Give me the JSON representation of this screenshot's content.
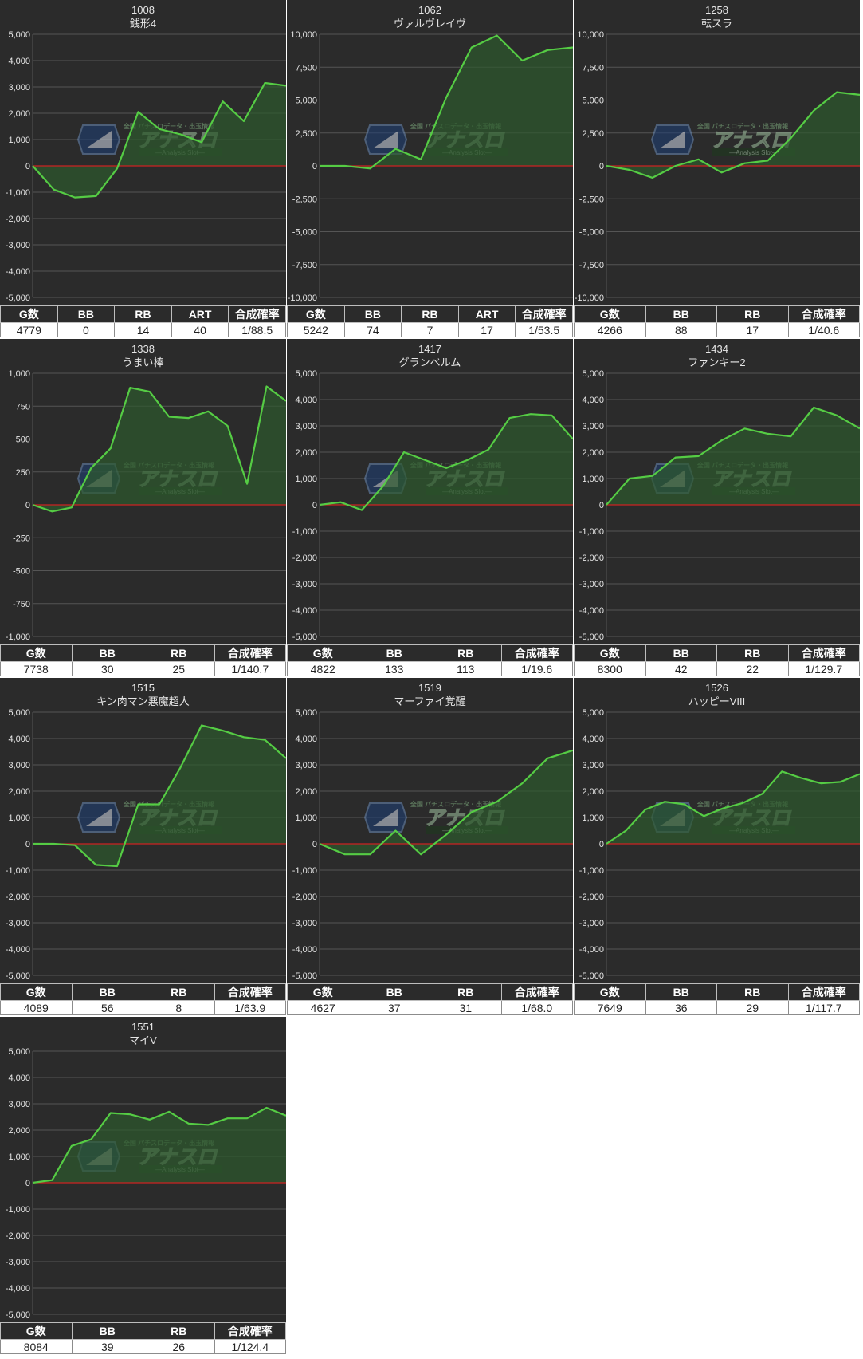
{
  "colors": {
    "panel_bg": "#2b2b2b",
    "grid": "#555555",
    "zero_line": "#cc2222",
    "line": "#55cc44",
    "fill": "#2d5a2d",
    "label": "#e6e6e6",
    "title": "#e6e6e6"
  },
  "watermark": {
    "brand": "アナスロ",
    "tagline": "全国 パチスロデータ・出玉情報",
    "sub": "―Analysis Slot―",
    "logo_icon": "hexagon-logo-icon"
  },
  "panels": [
    {
      "machine_no": "1008",
      "machine_name": "銭形4",
      "stats_headers": [
        "G数",
        "BB",
        "RB",
        "ART",
        "合成確率"
      ],
      "stats_values": [
        "4779",
        "0",
        "14",
        "40",
        "1/88.5"
      ],
      "chart_data": {
        "type": "area",
        "ylim": [
          -5000,
          5000
        ],
        "yticks": [
          5000,
          4000,
          3000,
          2000,
          1000,
          0,
          -1000,
          -2000,
          -3000,
          -4000,
          -5000
        ],
        "ytick_labels": [
          "5,000",
          "4,000",
          "3,000",
          "2,000",
          "1,000",
          "0",
          "-1,000",
          "-2,000",
          "-3,000",
          "-4,000",
          "-5,000"
        ],
        "values": [
          0,
          -900,
          -1200,
          -1150,
          -100,
          2050,
          1400,
          1200,
          900,
          2450,
          1700,
          3150,
          3050
        ]
      }
    },
    {
      "machine_no": "1062",
      "machine_name": "ヴァルヴレイヴ",
      "stats_headers": [
        "G数",
        "BB",
        "RB",
        "ART",
        "合成確率"
      ],
      "stats_values": [
        "5242",
        "74",
        "7",
        "17",
        "1/53.5"
      ],
      "chart_data": {
        "type": "area",
        "ylim": [
          -10000,
          10000
        ],
        "yticks": [
          10000,
          7500,
          5000,
          2500,
          0,
          -2500,
          -5000,
          -7500,
          -10000
        ],
        "ytick_labels": [
          "10,000",
          "7,500",
          "5,000",
          "2,500",
          "0",
          "-2,500",
          "-5,000",
          "-7,500",
          "-10,000"
        ],
        "values": [
          0,
          0,
          -200,
          1300,
          500,
          5200,
          9000,
          9900,
          8000,
          8800,
          9000
        ]
      }
    },
    {
      "machine_no": "1258",
      "machine_name": "転スラ",
      "stats_headers": [
        "G数",
        "BB",
        "RB",
        "合成確率"
      ],
      "stats_values": [
        "4266",
        "88",
        "17",
        "1/40.6"
      ],
      "chart_data": {
        "type": "area",
        "ylim": [
          -10000,
          10000
        ],
        "yticks": [
          10000,
          7500,
          5000,
          2500,
          0,
          -2500,
          -5000,
          -7500,
          -10000
        ],
        "ytick_labels": [
          "10,000",
          "7,500",
          "5,000",
          "2,500",
          "0",
          "-2,500",
          "-5,000",
          "-7,500",
          "-10,000"
        ],
        "values": [
          0,
          -300,
          -900,
          0,
          500,
          -500,
          200,
          400,
          2100,
          4200,
          5600,
          5400
        ]
      }
    },
    {
      "machine_no": "1338",
      "machine_name": "うまい棒",
      "stats_headers": [
        "G数",
        "BB",
        "RB",
        "合成確率"
      ],
      "stats_values": [
        "7738",
        "30",
        "25",
        "1/140.7"
      ],
      "chart_data": {
        "type": "area",
        "ylim": [
          -1000,
          1000
        ],
        "yticks": [
          1000,
          750,
          500,
          250,
          0,
          -250,
          -500,
          -750,
          -1000
        ],
        "ytick_labels": [
          "1,000",
          "750",
          "500",
          "250",
          "0",
          "-250",
          "-500",
          "-750",
          "-1,000"
        ],
        "values": [
          0,
          -50,
          -20,
          280,
          430,
          890,
          860,
          670,
          660,
          710,
          600,
          160,
          900,
          790
        ]
      }
    },
    {
      "machine_no": "1417",
      "machine_name": "グランベルム",
      "stats_headers": [
        "G数",
        "BB",
        "RB",
        "合成確率"
      ],
      "stats_values": [
        "4822",
        "133",
        "113",
        "1/19.6"
      ],
      "chart_data": {
        "type": "area",
        "ylim": [
          -5000,
          5000
        ],
        "yticks": [
          5000,
          4000,
          3000,
          2000,
          1000,
          0,
          -1000,
          -2000,
          -3000,
          -4000,
          -5000
        ],
        "ytick_labels": [
          "5,000",
          "4,000",
          "3,000",
          "2,000",
          "1,000",
          "0",
          "-1,000",
          "-2,000",
          "-3,000",
          "-4,000",
          "-5,000"
        ],
        "values": [
          0,
          100,
          -200,
          700,
          2000,
          1700,
          1400,
          1700,
          2100,
          3300,
          3450,
          3400,
          2500
        ]
      }
    },
    {
      "machine_no": "1434",
      "machine_name": "ファンキー2",
      "stats_headers": [
        "G数",
        "BB",
        "RB",
        "合成確率"
      ],
      "stats_values": [
        "8300",
        "42",
        "22",
        "1/129.7"
      ],
      "chart_data": {
        "type": "area",
        "ylim": [
          -5000,
          5000
        ],
        "yticks": [
          5000,
          4000,
          3000,
          2000,
          1000,
          0,
          -1000,
          -2000,
          -3000,
          -4000,
          -5000
        ],
        "ytick_labels": [
          "5,000",
          "4,000",
          "3,000",
          "2,000",
          "1,000",
          "0",
          "-1,000",
          "-2,000",
          "-3,000",
          "-4,000",
          "-5,000"
        ],
        "values": [
          0,
          1000,
          1100,
          1800,
          1850,
          2450,
          2900,
          2700,
          2600,
          3700,
          3400,
          2900
        ]
      }
    },
    {
      "machine_no": "1515",
      "machine_name": "キン肉マン悪魔超人",
      "stats_headers": [
        "G数",
        "BB",
        "RB",
        "合成確率"
      ],
      "stats_values": [
        "4089",
        "56",
        "8",
        "1/63.9"
      ],
      "chart_data": {
        "type": "area",
        "ylim": [
          -5000,
          5000
        ],
        "yticks": [
          5000,
          4000,
          3000,
          2000,
          1000,
          0,
          -1000,
          -2000,
          -3000,
          -4000,
          -5000
        ],
        "ytick_labels": [
          "5,000",
          "4,000",
          "3,000",
          "2,000",
          "1,000",
          "0",
          "-1,000",
          "-2,000",
          "-3,000",
          "-4,000",
          "-5,000"
        ],
        "values": [
          0,
          0,
          -50,
          -800,
          -850,
          1500,
          1500,
          2900,
          4500,
          4300,
          4050,
          3950,
          3250
        ]
      }
    },
    {
      "machine_no": "1519",
      "machine_name": "マーファイ覚醒",
      "stats_headers": [
        "G数",
        "BB",
        "RB",
        "合成確率"
      ],
      "stats_values": [
        "4627",
        "37",
        "31",
        "1/68.0"
      ],
      "chart_data": {
        "type": "area",
        "ylim": [
          -5000,
          5000
        ],
        "yticks": [
          5000,
          4000,
          3000,
          2000,
          1000,
          0,
          -1000,
          -2000,
          -3000,
          -4000,
          -5000
        ],
        "ytick_labels": [
          "5,000",
          "4,000",
          "3,000",
          "2,000",
          "1,000",
          "0",
          "-1,000",
          "-2,000",
          "-3,000",
          "-4,000",
          "-5,000"
        ],
        "values": [
          0,
          -400,
          -400,
          500,
          -400,
          350,
          1200,
          1600,
          2300,
          3250,
          3550
        ]
      }
    },
    {
      "machine_no": "1526",
      "machine_name": "ハッピーVIII",
      "stats_headers": [
        "G数",
        "BB",
        "RB",
        "合成確率"
      ],
      "stats_values": [
        "7649",
        "36",
        "29",
        "1/117.7"
      ],
      "chart_data": {
        "type": "area",
        "ylim": [
          -5000,
          5000
        ],
        "yticks": [
          5000,
          4000,
          3000,
          2000,
          1000,
          0,
          -1000,
          -2000,
          -3000,
          -4000,
          -5000
        ],
        "ytick_labels": [
          "5,000",
          "4,000",
          "3,000",
          "2,000",
          "1,000",
          "0",
          "-1,000",
          "-2,000",
          "-3,000",
          "-4,000",
          "-5,000"
        ],
        "values": [
          0,
          500,
          1300,
          1600,
          1500,
          1050,
          1350,
          1550,
          1900,
          2750,
          2500,
          2300,
          2350,
          2650
        ]
      }
    },
    {
      "machine_no": "1551",
      "machine_name": "マイV",
      "stats_headers": [
        "G数",
        "BB",
        "RB",
        "合成確率"
      ],
      "stats_values": [
        "8084",
        "39",
        "26",
        "1/124.4"
      ],
      "chart_data": {
        "type": "area",
        "ylim": [
          -5000,
          5000
        ],
        "yticks": [
          5000,
          4000,
          3000,
          2000,
          1000,
          0,
          -1000,
          -2000,
          -3000,
          -4000,
          -5000
        ],
        "ytick_labels": [
          "5,000",
          "4,000",
          "3,000",
          "2,000",
          "1,000",
          "0",
          "-1,000",
          "-2,000",
          "-3,000",
          "-4,000",
          "-5,000"
        ],
        "values": [
          0,
          100,
          1400,
          1650,
          2650,
          2600,
          2400,
          2700,
          2250,
          2200,
          2450,
          2450,
          2850,
          2550
        ]
      }
    }
  ]
}
